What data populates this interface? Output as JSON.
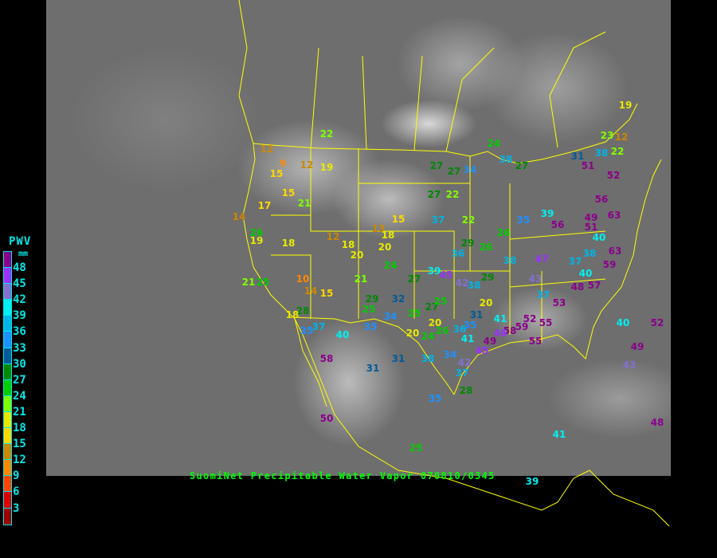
{
  "caption": "SuomiNet Precipitable Water Vapor 070810/0345",
  "legend": {
    "title": "PWV",
    "unit": "mm",
    "labels": [
      "48",
      "45",
      "42",
      "39",
      "36",
      "33",
      "30",
      "27",
      "24",
      "21",
      "18",
      "15",
      "12",
      "9",
      "6",
      "3"
    ],
    "colors": [
      "#8b008b",
      "#9b30ff",
      "#8470d0",
      "#00f0f0",
      "#00b4e8",
      "#1e90ff",
      "#005a9a",
      "#008800",
      "#00cc00",
      "#80ff00",
      "#e8e800",
      "#ffd700",
      "#cc8800",
      "#ff8800",
      "#ff4400",
      "#dd0000",
      "#990000"
    ]
  },
  "colors": {
    "borders": "#ffff00",
    "background": "#000000",
    "caption": "#00ff00",
    "legend": "#00e8e8"
  },
  "stations": [
    22,
    12,
    9,
    15,
    12,
    19,
    15,
    21,
    17,
    14,
    26,
    19,
    18,
    12,
    18,
    20,
    13,
    18,
    20,
    15,
    24,
    27,
    27,
    34,
    27,
    22,
    37,
    22,
    24,
    38,
    27,
    31,
    38,
    51,
    22,
    19,
    12,
    23,
    52,
    56,
    63,
    49,
    51,
    40,
    38,
    63,
    59,
    37,
    40,
    48,
    57,
    35,
    39,
    56,
    26,
    29,
    26,
    36,
    38,
    47,
    43,
    37,
    53,
    52,
    59,
    55,
    55,
    58,
    46,
    49,
    45,
    42,
    34,
    37,
    28,
    35,
    38,
    31,
    35,
    34,
    32,
    27,
    39,
    45,
    42,
    38,
    29,
    20,
    31,
    41,
    35,
    36,
    41,
    20,
    26,
    24,
    20,
    25,
    27,
    25,
    29,
    25,
    21,
    10,
    14,
    15,
    28,
    18,
    35,
    37,
    40,
    58,
    50,
    31,
    25,
    39,
    41,
    40,
    52,
    49,
    43,
    48,
    25,
    21
  ]
}
